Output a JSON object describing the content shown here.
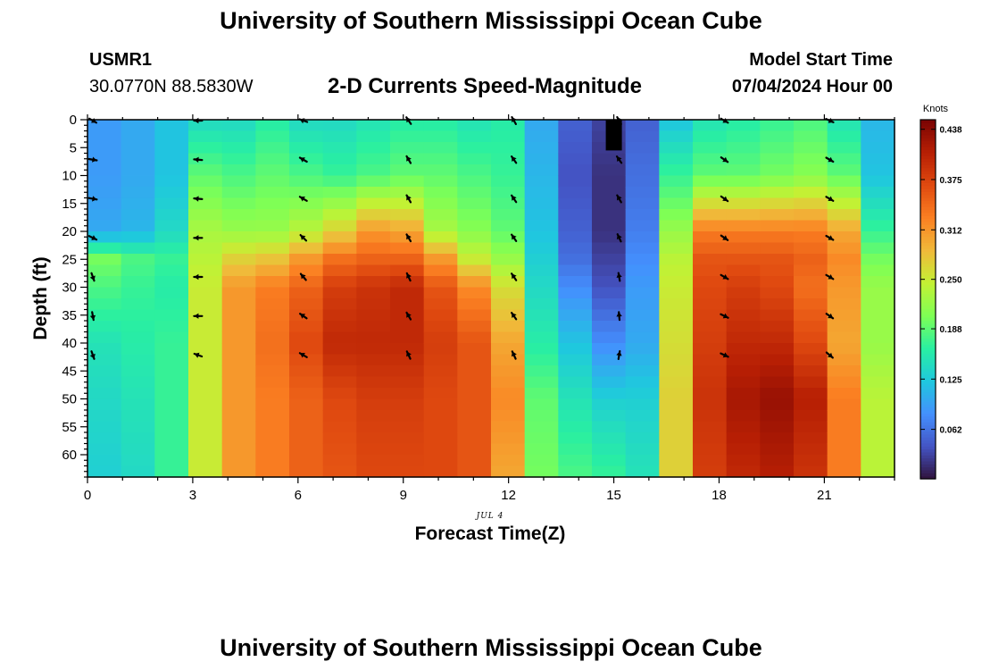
{
  "header": {
    "title": "University of Southern Mississippi Ocean Cube",
    "station_id": "USMR1",
    "coordinates": "30.0770N  88.5830W",
    "subtitle": "2-D Currents Speed-Magnitude",
    "model_start_label": "Model Start Time",
    "model_start_value": "07/04/2024 Hour 00"
  },
  "footer": {
    "title": "University of Southern Mississippi Ocean Cube"
  },
  "chart_data": {
    "type": "heatmap",
    "title": "2-D Currents Speed-Magnitude",
    "xlabel": "Forecast Time(Z)",
    "ylabel": "Depth (ft)",
    "x_date_label": "JUL 4",
    "xlim": [
      0,
      23
    ],
    "ylim": [
      0,
      64
    ],
    "y_inverted": true,
    "x_ticks": [
      0,
      3,
      6,
      9,
      12,
      15,
      18,
      21
    ],
    "y_ticks": [
      0,
      5,
      10,
      15,
      20,
      25,
      30,
      35,
      40,
      45,
      50,
      55,
      60
    ],
    "colorbar": {
      "label": "Knots",
      "min": 0.0,
      "max": 0.45,
      "ticks": [
        "0.438",
        "0.375",
        "0.312",
        "0.250",
        "0.188",
        "0.125",
        "0.062"
      ],
      "colormap": [
        "#30123b",
        "#4454c4",
        "#4490fe",
        "#1fc8de",
        "#29efa2",
        "#7eff55",
        "#c3f134",
        "#f0ba3a",
        "#fb8022",
        "#e04a10",
        "#b71f04",
        "#7a0403"
      ]
    },
    "time_hours": [
      0,
      1,
      2,
      3,
      4,
      5,
      6,
      7,
      8,
      9,
      10,
      11,
      12,
      13,
      14,
      15,
      16,
      17,
      18,
      19,
      20,
      21,
      22,
      23
    ],
    "depth_ft": [
      0,
      10,
      20,
      25,
      30,
      40,
      50,
      64
    ],
    "speed_knots": [
      [
        0.09,
        0.1,
        0.12,
        0.14,
        0.14,
        0.16,
        0.14,
        0.14,
        0.15,
        0.16,
        0.16,
        0.15,
        0.16,
        0.1,
        0.05,
        0.03,
        0.05,
        0.12,
        0.15,
        0.16,
        0.17,
        0.18,
        0.15,
        0.11
      ],
      [
        0.09,
        0.1,
        0.12,
        0.19,
        0.18,
        0.19,
        0.18,
        0.17,
        0.18,
        0.19,
        0.19,
        0.18,
        0.17,
        0.11,
        0.04,
        0.02,
        0.06,
        0.17,
        0.19,
        0.19,
        0.2,
        0.21,
        0.19,
        0.12
      ],
      [
        0.1,
        0.11,
        0.14,
        0.23,
        0.22,
        0.22,
        0.24,
        0.27,
        0.31,
        0.3,
        0.23,
        0.21,
        0.19,
        0.12,
        0.05,
        0.02,
        0.07,
        0.22,
        0.33,
        0.33,
        0.33,
        0.33,
        0.3,
        0.17
      ],
      [
        0.2,
        0.18,
        0.17,
        0.24,
        0.27,
        0.28,
        0.31,
        0.34,
        0.35,
        0.35,
        0.31,
        0.25,
        0.22,
        0.13,
        0.06,
        0.03,
        0.08,
        0.24,
        0.36,
        0.36,
        0.36,
        0.35,
        0.32,
        0.2
      ],
      [
        0.18,
        0.17,
        0.16,
        0.25,
        0.31,
        0.33,
        0.35,
        0.38,
        0.39,
        0.4,
        0.36,
        0.32,
        0.26,
        0.14,
        0.08,
        0.04,
        0.09,
        0.25,
        0.37,
        0.38,
        0.37,
        0.34,
        0.31,
        0.22
      ],
      [
        0.15,
        0.16,
        0.17,
        0.25,
        0.31,
        0.34,
        0.37,
        0.4,
        0.4,
        0.4,
        0.38,
        0.36,
        0.3,
        0.16,
        0.12,
        0.08,
        0.1,
        0.26,
        0.38,
        0.4,
        0.4,
        0.37,
        0.3,
        0.22
      ],
      [
        0.14,
        0.15,
        0.17,
        0.25,
        0.31,
        0.33,
        0.35,
        0.37,
        0.38,
        0.38,
        0.37,
        0.36,
        0.32,
        0.19,
        0.15,
        0.13,
        0.13,
        0.27,
        0.39,
        0.42,
        0.43,
        0.41,
        0.33,
        0.24
      ],
      [
        0.13,
        0.14,
        0.17,
        0.25,
        0.31,
        0.33,
        0.35,
        0.36,
        0.37,
        0.37,
        0.37,
        0.36,
        0.3,
        0.2,
        0.18,
        0.17,
        0.15,
        0.27,
        0.38,
        0.4,
        0.41,
        0.39,
        0.33,
        0.24
      ]
    ],
    "no_data_cells": [
      {
        "hour": 15,
        "depth_from_ft": 0,
        "depth_to_ft": 5
      }
    ],
    "current_vectors": {
      "times": [
        0,
        3,
        6,
        9,
        12,
        15,
        18,
        21
      ],
      "depths_ft": [
        0,
        7,
        14,
        21,
        28,
        35,
        42
      ],
      "direction_deg": [
        [
          120,
          100,
          100,
          115,
          160,
          170,
          160
        ],
        [
          270,
          275,
          275,
          270,
          270,
          270,
          290
        ],
        [
          290,
          300,
          300,
          315,
          320,
          305,
          300
        ],
        [
          325,
          330,
          330,
          330,
          335,
          330,
          335
        ],
        [
          330,
          325,
          325,
          325,
          325,
          325,
          335
        ],
        [
          330,
          325,
          330,
          335,
          350,
          355,
          10
        ],
        [
          120,
          125,
          125,
          125,
          120,
          115,
          115
        ],
        [
          115,
          120,
          120,
          120,
          120,
          125,
          130
        ]
      ]
    }
  }
}
